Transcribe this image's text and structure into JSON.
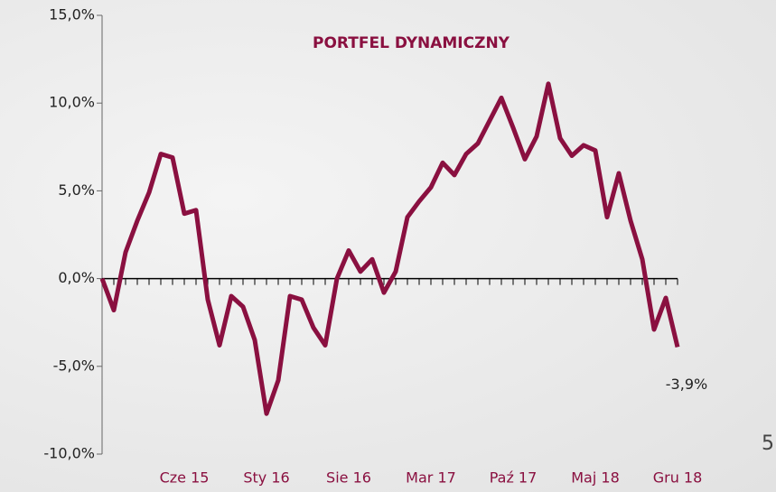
{
  "chart_data": {
    "type": "line",
    "title": "PORTFEL DYNAMICZNY",
    "categories": [
      null,
      null,
      null,
      null,
      null,
      null,
      null,
      "Cze 15",
      null,
      null,
      null,
      null,
      null,
      null,
      "Sty 16",
      null,
      null,
      null,
      null,
      null,
      null,
      "Sie 16",
      null,
      null,
      null,
      null,
      null,
      null,
      "Mar 17",
      null,
      null,
      null,
      null,
      null,
      null,
      "Paź 17",
      null,
      null,
      null,
      null,
      null,
      null,
      "Maj 18",
      null,
      null,
      null,
      null,
      null,
      null,
      "Gru 18"
    ],
    "series": [
      {
        "name": "PORTFEL DYNAMICZNY",
        "color": "#8a1040",
        "values": [
          0,
          -1.8,
          1.5,
          3.3,
          4.9,
          7.1,
          6.9,
          3.7,
          3.9,
          -1.2,
          -3.8,
          -1.0,
          -1.6,
          -3.5,
          -7.7,
          -5.8,
          -1.0,
          -1.2,
          -2.8,
          -3.8,
          0.0,
          1.6,
          0.4,
          1.1,
          -0.8,
          0.4,
          3.5,
          4.4,
          5.2,
          6.6,
          5.9,
          7.1,
          7.7,
          9.0,
          10.3,
          8.6,
          6.8,
          8.1,
          11.1,
          8.0,
          7.0,
          7.6,
          7.3,
          3.5,
          6.0,
          3.3,
          1.1,
          -2.9,
          -1.1,
          -3.9
        ],
        "value_labels": [
          null,
          null,
          null,
          null,
          null,
          null,
          null,
          null,
          null,
          null,
          null,
          null,
          null,
          null,
          null,
          null,
          null,
          null,
          null,
          null,
          null,
          null,
          null,
          null,
          null,
          null,
          null,
          null,
          null,
          null,
          null,
          null,
          null,
          null,
          null,
          null,
          null,
          null,
          null,
          null,
          null,
          null,
          null,
          null,
          null,
          null,
          null,
          null,
          null,
          "-3,9%"
        ]
      }
    ],
    "ylim": [
      -10,
      15
    ],
    "yticks": [
      {
        "value": -10,
        "label": "-10,0%"
      },
      {
        "value": -5,
        "label": "-5,0%"
      },
      {
        "value": 0,
        "label": "0,0%"
      },
      {
        "value": 5,
        "label": "5,0%"
      },
      {
        "value": 10,
        "label": "10,0%"
      },
      {
        "value": 15,
        "label": "15,0%"
      }
    ]
  },
  "page_number": "5"
}
